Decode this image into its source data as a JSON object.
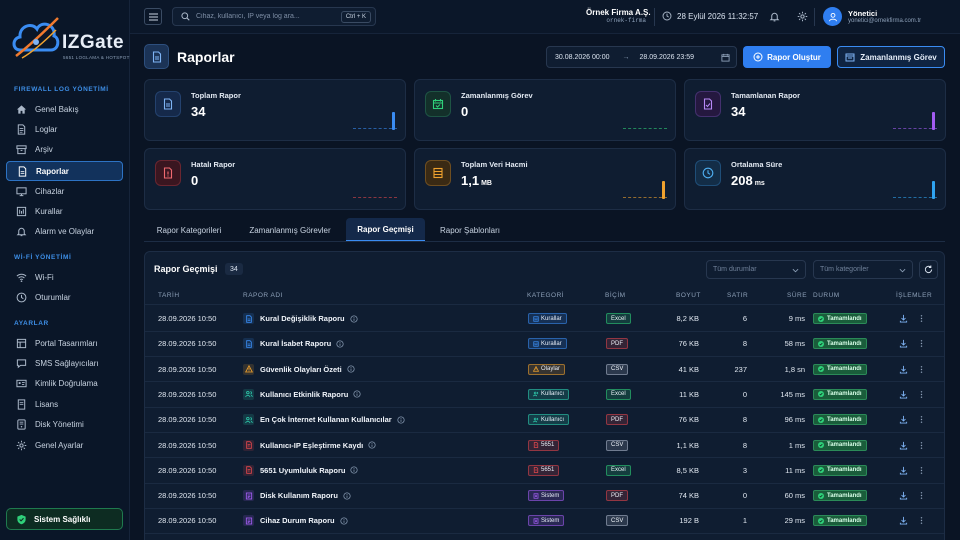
{
  "brand": {
    "name": "IZGate",
    "tagline": "5651 LOGLAMA & HOTSPOT"
  },
  "sidebar": {
    "sections": [
      {
        "title": "FIREWALL LOG YÖNETİMİ",
        "items": [
          {
            "label": "Genel Bakış",
            "icon": "home-icon"
          },
          {
            "label": "Loglar",
            "icon": "document-icon"
          },
          {
            "label": "Arşiv",
            "icon": "archive-icon"
          },
          {
            "label": "Raporlar",
            "icon": "report-icon",
            "active": true
          },
          {
            "label": "Cihazlar",
            "icon": "monitor-icon"
          },
          {
            "label": "Kurallar",
            "icon": "rules-icon"
          },
          {
            "label": "Alarm ve Olaylar",
            "icon": "bell-icon"
          }
        ]
      },
      {
        "title": "Wİ-Fİ YÖNETİMİ",
        "items": [
          {
            "label": "Wi-Fi",
            "icon": "wifi-icon"
          },
          {
            "label": "Oturumlar",
            "icon": "clock-icon"
          }
        ]
      },
      {
        "title": "AYARLAR",
        "items": [
          {
            "label": "Portal Tasarımları",
            "icon": "layout-icon"
          },
          {
            "label": "SMS Sağlayıcıları",
            "icon": "sms-icon"
          },
          {
            "label": "Kimlik Doğrulama",
            "icon": "id-card-icon"
          },
          {
            "label": "Lisans",
            "icon": "license-icon"
          },
          {
            "label": "Disk Yönetimi",
            "icon": "disk-icon"
          },
          {
            "label": "Genel Ayarlar",
            "icon": "gear-icon"
          }
        ]
      }
    ],
    "health_label": "Sistem Sağlıklı"
  },
  "topbar": {
    "search_placeholder": "Cihaz, kullanıcı, IP veya log ara...",
    "shortcut": "Ctrl + K",
    "company_name": "Örnek Firma A.Ş.",
    "company_slug": "ornek-firma",
    "datetime": "28 Eylül 2026 11:32:57",
    "user_name": "Yönetici",
    "user_email": "yonetici@ornekfirma.com.tr"
  },
  "page": {
    "title": "Raporlar",
    "date_from": "30.08.2026 00:00",
    "date_to": "28.09.2026 23:59",
    "create_button": "Rapor Oluştur",
    "scheduled_button": "Zamanlanmış Görev"
  },
  "stats": [
    {
      "label": "Toplam Rapor",
      "value": "34",
      "unit": "",
      "icon": "report-icon",
      "color": "#3a8cf2",
      "level": 0.6
    },
    {
      "label": "Zamanlanmış Görev",
      "value": "0",
      "unit": "",
      "icon": "calendar-check-icon",
      "color": "#2fd07a",
      "level": 0
    },
    {
      "label": "Tamamlanan Rapor",
      "value": "34",
      "unit": "",
      "icon": "report-check-icon",
      "color": "#a25cf2",
      "level": 0.6
    },
    {
      "label": "Hatalı Rapor",
      "value": "0",
      "unit": "",
      "icon": "report-error-icon",
      "color": "#e0474c",
      "level": 0
    },
    {
      "label": "Toplam Veri Hacmi",
      "value": "1,1",
      "unit": "MB",
      "icon": "database-icon",
      "color": "#f0a22e",
      "level": 0.6
    },
    {
      "label": "Ortalama Süre",
      "value": "208",
      "unit": "ms",
      "icon": "clock-icon",
      "color": "#2fa3f0",
      "level": 0.6
    }
  ],
  "tabs": [
    {
      "label": "Rapor Kategorileri"
    },
    {
      "label": "Zamanlanmış Görevler"
    },
    {
      "label": "Rapor Geçmişi",
      "active": true
    },
    {
      "label": "Rapor Şablonları"
    }
  ],
  "history": {
    "title": "Rapor Geçmişi",
    "count": "34",
    "status_filter": "Tüm durumlar",
    "category_filter": "Tüm kategoriler",
    "columns": [
      "TARİH",
      "RAPOR ADI",
      "KATEGORİ",
      "BİÇİM",
      "BOYUT",
      "SATIR",
      "SÜRE",
      "DURUM",
      "İŞLEMLER"
    ],
    "rows": [
      {
        "date": "28.09.2026 10:50",
        "name": "Kural Değişiklik Raporu",
        "icon": "rule-doc-icon",
        "icon_color": "#3a8cf2",
        "category": "Kurallar",
        "cat_color": "#3a8cf2",
        "format": "Excel",
        "size": "8,2 KB",
        "rows": "6",
        "duration": "9 ms",
        "status": "Tamamlandı"
      },
      {
        "date": "28.09.2026 10:50",
        "name": "Kural İsabet Raporu",
        "icon": "rule-doc-icon",
        "icon_color": "#3a8cf2",
        "category": "Kurallar",
        "cat_color": "#3a8cf2",
        "format": "PDF",
        "size": "76 KB",
        "rows": "8",
        "duration": "58 ms",
        "status": "Tamamlandı"
      },
      {
        "date": "28.09.2026 10:50",
        "name": "Güvenlik Olayları Özeti",
        "icon": "warning-icon",
        "icon_color": "#f0a22e",
        "category": "Olaylar",
        "cat_color": "#f0a22e",
        "format": "CSV",
        "size": "41 KB",
        "rows": "237",
        "duration": "1,8 sn",
        "status": "Tamamlandı"
      },
      {
        "date": "28.09.2026 10:50",
        "name": "Kullanıcı Etkinlik Raporu",
        "icon": "users-icon",
        "icon_color": "#2fd0b0",
        "category": "Kullanıcı",
        "cat_color": "#2fd0b0",
        "format": "Excel",
        "size": "11 KB",
        "rows": "0",
        "duration": "145 ms",
        "status": "Tamamlandı"
      },
      {
        "date": "28.09.2026 10:50",
        "name": "En Çok İnternet Kullanan Kullanıcılar",
        "icon": "users-icon",
        "icon_color": "#2fd0b0",
        "category": "Kullanıcı",
        "cat_color": "#2fd0b0",
        "format": "PDF",
        "size": "76 KB",
        "rows": "8",
        "duration": "96 ms",
        "status": "Tamamlandı"
      },
      {
        "date": "28.09.2026 10:50",
        "name": "Kullanıcı-IP Eşleştirme Kaydı",
        "icon": "legal-doc-icon",
        "icon_color": "#e0474c",
        "category": "5651",
        "cat_color": "#e0474c",
        "format": "CSV",
        "size": "1,1 KB",
        "rows": "8",
        "duration": "1 ms",
        "status": "Tamamlandı"
      },
      {
        "date": "28.09.2026 10:50",
        "name": "5651 Uyumluluk Raporu",
        "icon": "legal-doc-icon",
        "icon_color": "#e0474c",
        "category": "5651",
        "cat_color": "#e0474c",
        "format": "Excel",
        "size": "8,5 KB",
        "rows": "3",
        "duration": "11 ms",
        "status": "Tamamlandı"
      },
      {
        "date": "28.09.2026 10:50",
        "name": "Disk Kullanım Raporu",
        "icon": "system-doc-icon",
        "icon_color": "#a25cf2",
        "category": "Sistem",
        "cat_color": "#a25cf2",
        "format": "PDF",
        "size": "74 KB",
        "rows": "0",
        "duration": "60 ms",
        "status": "Tamamlandı"
      },
      {
        "date": "28.09.2026 10:50",
        "name": "Cihaz Durum Raporu",
        "icon": "system-doc-icon",
        "icon_color": "#a25cf2",
        "category": "Sistem",
        "cat_color": "#a25cf2",
        "format": "CSV",
        "size": "192 B",
        "rows": "1",
        "duration": "29 ms",
        "status": "Tamamlandı"
      }
    ]
  },
  "format_colors": {
    "Excel": "#2fd07a",
    "PDF": "#e0474c",
    "CSV": "#aab7c8"
  }
}
